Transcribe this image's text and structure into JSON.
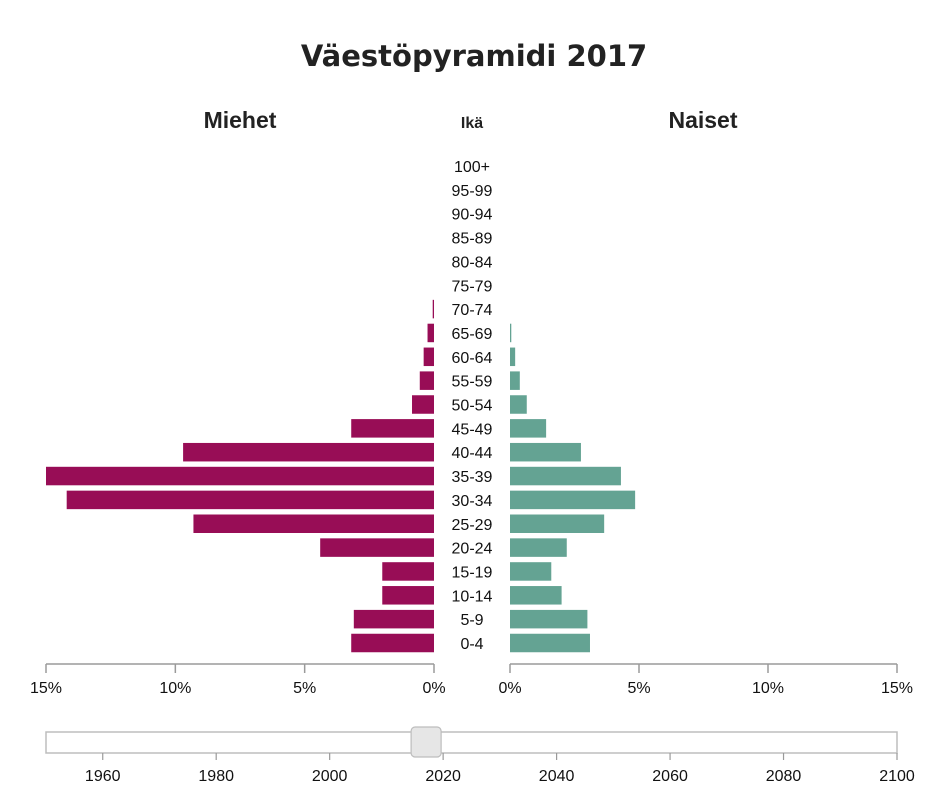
{
  "chart_data": {
    "type": "bar",
    "title": "Väestöpyramidi 2017",
    "left_label": "Miehet",
    "right_label": "Naiset",
    "age_header": "Ikä",
    "categories": [
      "0-4",
      "5-9",
      "10-14",
      "15-19",
      "20-24",
      "25-29",
      "30-34",
      "35-39",
      "40-44",
      "45-49",
      "50-54",
      "55-59",
      "60-64",
      "65-69",
      "70-74",
      "75-79",
      "80-84",
      "85-89",
      "90-94",
      "95-99",
      "100+"
    ],
    "series": [
      {
        "name": "Miehet",
        "color": "#980d56",
        "values": [
          3.2,
          3.1,
          2.0,
          2.0,
          4.4,
          9.3,
          14.2,
          15.0,
          9.7,
          3.2,
          0.85,
          0.55,
          0.4,
          0.25,
          0.05,
          0,
          0,
          0,
          0,
          0,
          0
        ]
      },
      {
        "name": "Naiset",
        "color": "#64a393",
        "values": [
          3.1,
          3.0,
          2.0,
          1.6,
          2.2,
          3.65,
          4.85,
          4.3,
          2.75,
          1.4,
          0.65,
          0.38,
          0.2,
          0.05,
          0,
          0,
          0,
          0,
          0,
          0,
          0
        ]
      }
    ],
    "xlim": [
      0,
      15
    ],
    "ticks": [
      "0%",
      "5%",
      "10%",
      "15%"
    ],
    "tick_values": [
      0,
      5,
      10,
      15
    ],
    "grid": false
  },
  "slider": {
    "min": 1950,
    "max": 2100,
    "value": 2017,
    "tick_labels": [
      "1960",
      "1980",
      "2000",
      "2020",
      "2040",
      "2060",
      "2080",
      "2100"
    ],
    "tick_values": [
      1960,
      1980,
      2000,
      2020,
      2040,
      2060,
      2080,
      2100
    ]
  },
  "colors": {
    "men": "#980d56",
    "women": "#64a393",
    "axis": "#9a9a9a"
  }
}
